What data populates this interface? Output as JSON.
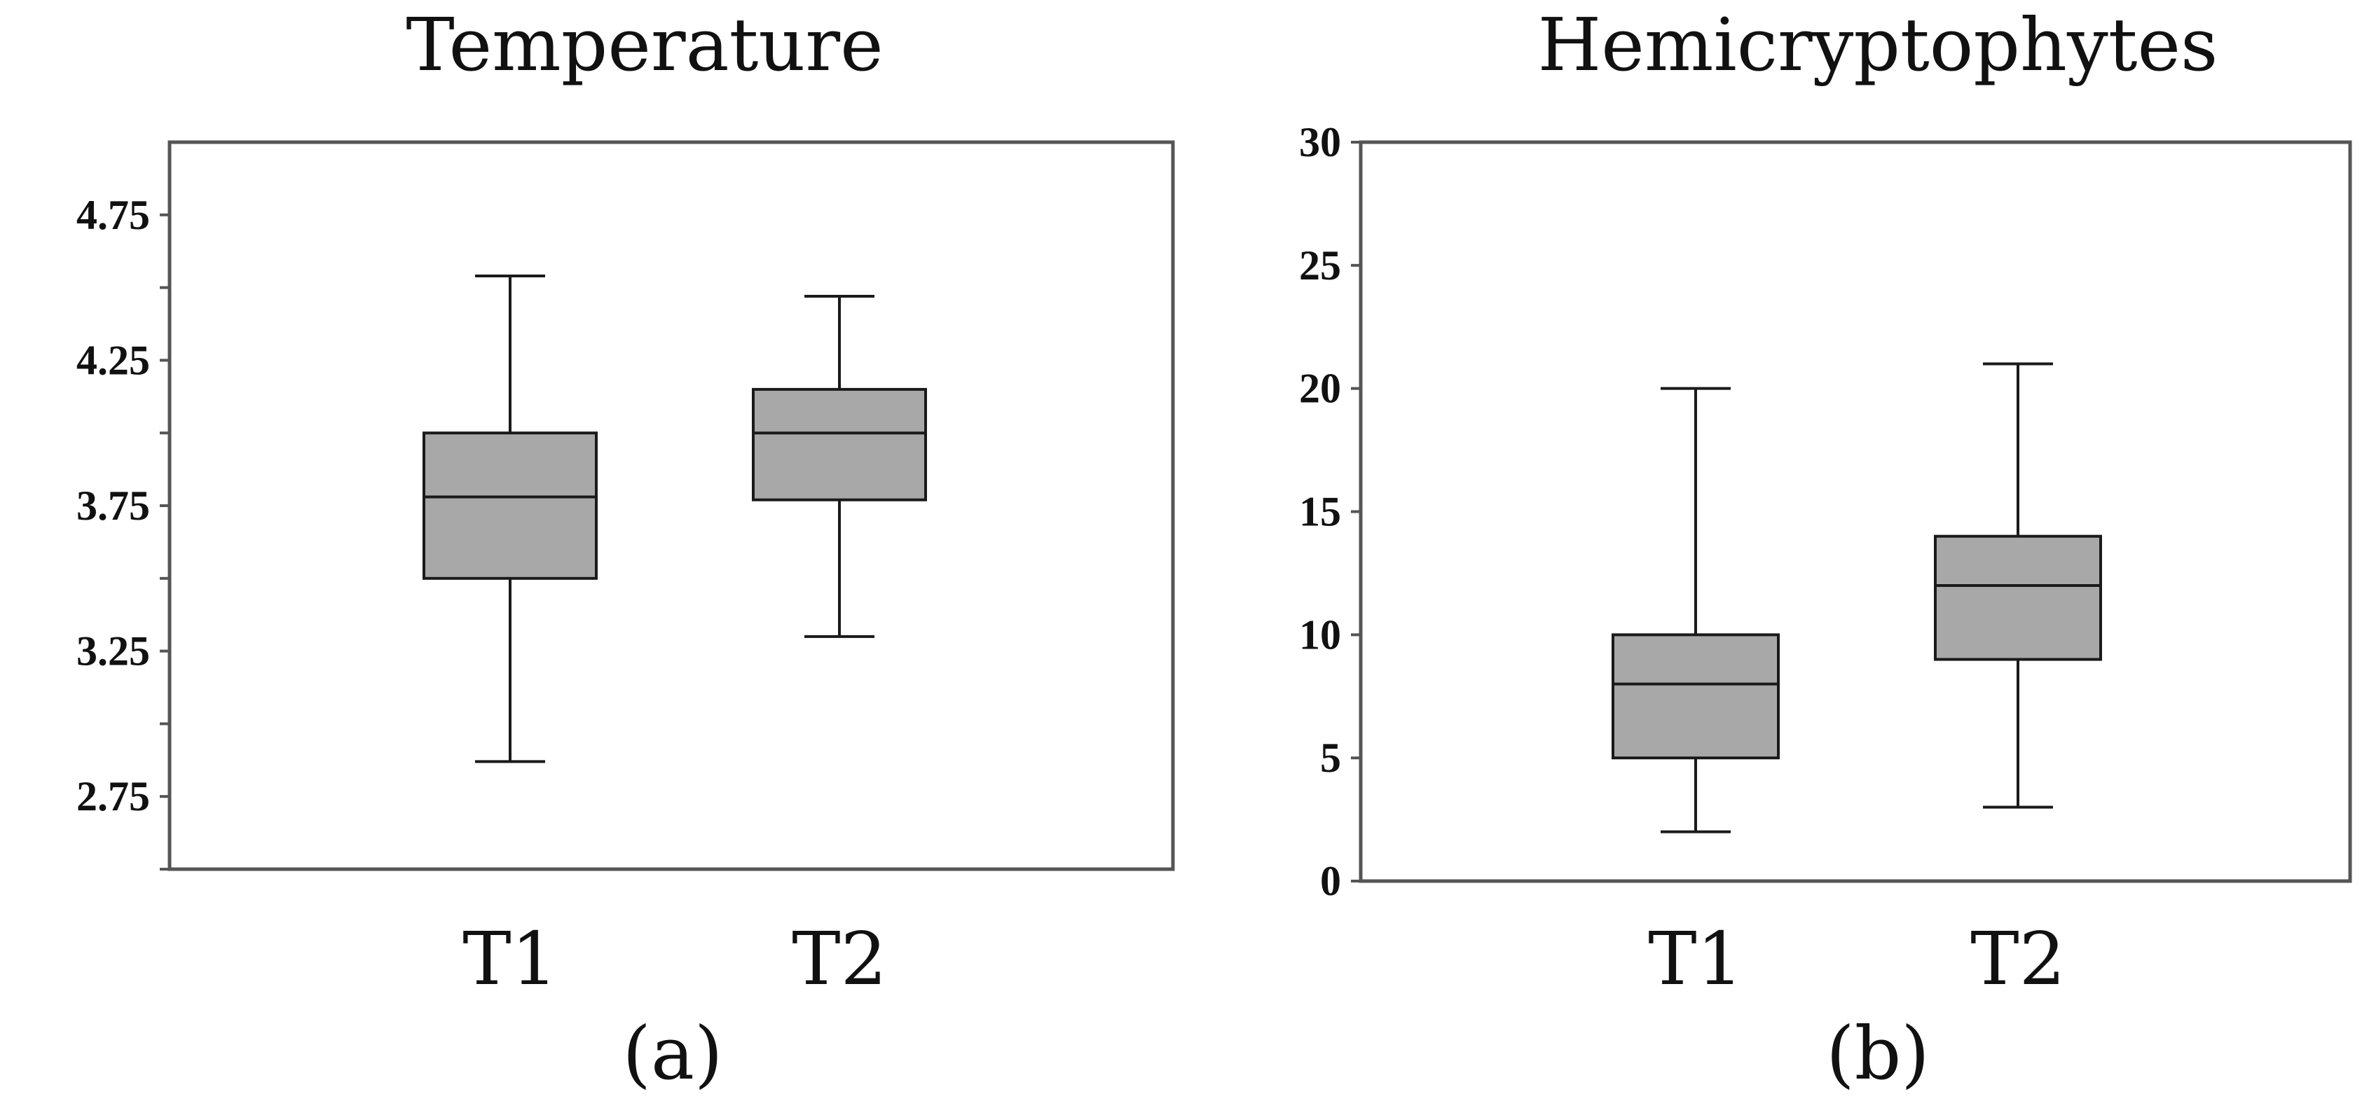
{
  "chart_data": [
    {
      "type": "box",
      "title": "Temperature",
      "panel_label": "(a)",
      "xlabel": "",
      "ylabel": "",
      "categories": [
        "T1",
        "T2"
      ],
      "ylim": [
        2.5,
        5.0
      ],
      "y_ticks_labeled": [
        2.75,
        3.25,
        3.75,
        4.25,
        4.75
      ],
      "y_tick_labels": [
        "2.75",
        "3.25",
        "3.75",
        "4.25",
        "4.75"
      ],
      "y_ticks_minor": [
        2.5,
        3.0,
        3.5,
        4.0,
        4.5
      ],
      "boxes": [
        {
          "category": "T1",
          "min": 2.87,
          "q1": 3.5,
          "median": 3.78,
          "q3": 4.0,
          "max": 4.54
        },
        {
          "category": "T2",
          "min": 3.3,
          "q1": 3.77,
          "median": 4.0,
          "q3": 4.15,
          "max": 4.47
        }
      ],
      "grid": false,
      "colors": {
        "box_fill": "#a8a8a8",
        "line": "#1a1a1a",
        "frame": "#555555"
      }
    },
    {
      "type": "box",
      "title": "Hemicryptophytes",
      "panel_label": "(b)",
      "xlabel": "",
      "ylabel": "",
      "categories": [
        "T1",
        "T2"
      ],
      "ylim": [
        0,
        30
      ],
      "y_ticks_labeled": [
        0,
        5,
        10,
        15,
        20,
        25,
        30
      ],
      "y_tick_labels": [
        "0",
        "5",
        "10",
        "15",
        "20",
        "25",
        "30"
      ],
      "boxes": [
        {
          "category": "T1",
          "min": 2,
          "q1": 5,
          "median": 8,
          "q3": 10,
          "max": 20
        },
        {
          "category": "T2",
          "min": 3,
          "q1": 9,
          "median": 12,
          "q3": 14,
          "max": 21
        }
      ],
      "grid": false,
      "colors": {
        "box_fill": "#a8a8a8",
        "line": "#1a1a1a",
        "frame": "#555555"
      }
    }
  ]
}
